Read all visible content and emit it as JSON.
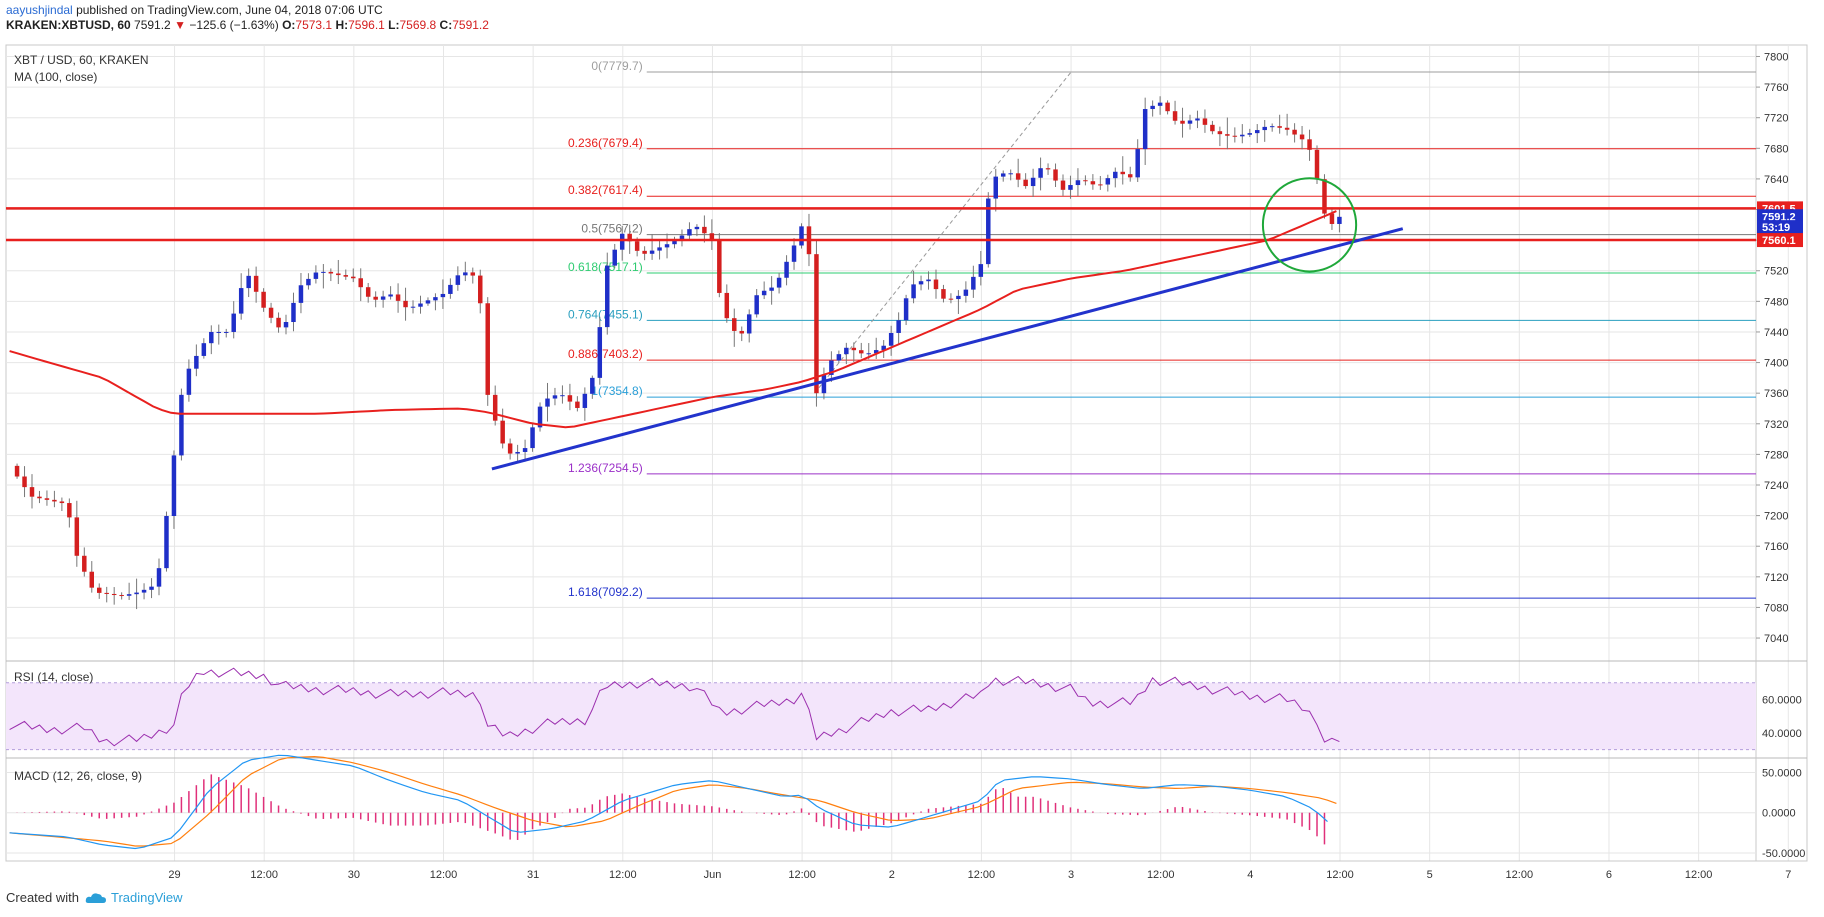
{
  "header": {
    "author": "aayushjindal",
    "published": "published on TradingView.com, June 04, 2018 07:06 UTC",
    "symbol": "KRAKEN:XBTUSD, 60",
    "price": "7591.2",
    "change_arrow": "▼",
    "change": "−125.6 (−1.63%)",
    "o_label": "O:",
    "o": "7573.1",
    "h_label": "H:",
    "h": "7596.1",
    "l_label": "L:",
    "l": "7569.8",
    "c_label": "C:",
    "c": "7591.2"
  },
  "legend": {
    "title": "XBT / USD, 60, KRAKEN",
    "ma": "MA (100, close)",
    "rsi": "RSI (14, close)",
    "macd": "MACD (12, 26, close, 9)"
  },
  "footer": {
    "created_with": "Created with",
    "brand": "TradingView"
  },
  "colors": {
    "up": "#1f2fc8",
    "down": "#d41f1f",
    "ma": "#e8201e",
    "trendline": "#2233cc",
    "rsi": "#9b2fae",
    "macd": "#2196f3",
    "signal": "#ff7f0e",
    "hist": "#e0307a",
    "circle": "#1fa83a",
    "grid": "#e6e6e6"
  },
  "chart_data": [
    {
      "type": "candlestick",
      "title": "XBT / USD, 60, KRAKEN",
      "x_axis": {
        "tick_labels": [
          "29",
          "12:00",
          "30",
          "12:00",
          "31",
          "12:00",
          "Jun",
          "12:00",
          "2",
          "12:00",
          "3",
          "12:00",
          "4",
          "12:00",
          "5",
          "12:00",
          "6",
          "12:00",
          "7"
        ],
        "tick_days": [
          0,
          0.5,
          1,
          1.5,
          2,
          2.5,
          3,
          3.5,
          4,
          4.5,
          5,
          5.5,
          6,
          6.5,
          7,
          7.5,
          8,
          8.5,
          9
        ],
        "range_days": [
          -0.94,
          8.82
        ]
      },
      "y_axis": {
        "ylim": [
          7010,
          7815
        ],
        "ticks": [
          7040,
          7080,
          7120,
          7160,
          7200,
          7240,
          7280,
          7320,
          7360,
          7400,
          7440,
          7480,
          7520,
          7560,
          7600,
          7640,
          7680,
          7720,
          7760,
          7800
        ],
        "price_tags": [
          {
            "label": "7601.5",
            "value": 7601.5,
            "color": "#e8201e"
          },
          {
            "label": "7591.2",
            "value": 7591.2,
            "color": "#1f2fc8"
          },
          {
            "label": "53:19",
            "value": 7577,
            "color": "#1f2fc8"
          },
          {
            "label": "7560.1",
            "value": 7560.1,
            "color": "#e8201e"
          }
        ]
      },
      "candles_keypoints": [
        [
          -0.92,
          7265
        ],
        [
          -0.8,
          7225
        ],
        [
          -0.6,
          7215
        ],
        [
          -0.55,
          7150
        ],
        [
          -0.45,
          7100
        ],
        [
          -0.3,
          7095
        ],
        [
          -0.2,
          7100
        ],
        [
          -0.1,
          7110
        ],
        [
          -0.05,
          7190
        ],
        [
          0.05,
          7380
        ],
        [
          0.2,
          7440
        ],
        [
          0.3,
          7440
        ],
        [
          0.4,
          7520
        ],
        [
          0.5,
          7470
        ],
        [
          0.6,
          7440
        ],
        [
          0.7,
          7500
        ],
        [
          0.8,
          7520
        ],
        [
          1.0,
          7510
        ],
        [
          1.1,
          7480
        ],
        [
          1.2,
          7490
        ],
        [
          1.3,
          7470
        ],
        [
          1.4,
          7480
        ],
        [
          1.5,
          7490
        ],
        [
          1.6,
          7520
        ],
        [
          1.7,
          7510
        ],
        [
          1.72,
          7380
        ],
        [
          1.78,
          7330
        ],
        [
          1.85,
          7280
        ],
        [
          1.95,
          7285
        ],
        [
          2.05,
          7350
        ],
        [
          2.15,
          7360
        ],
        [
          2.25,
          7340
        ],
        [
          2.35,
          7390
        ],
        [
          2.4,
          7520
        ],
        [
          2.5,
          7570
        ],
        [
          2.6,
          7540
        ],
        [
          2.7,
          7550
        ],
        [
          2.8,
          7560
        ],
        [
          2.9,
          7580
        ],
        [
          3.0,
          7560
        ],
        [
          3.05,
          7470
        ],
        [
          3.15,
          7430
        ],
        [
          3.25,
          7490
        ],
        [
          3.35,
          7500
        ],
        [
          3.45,
          7550
        ],
        [
          3.5,
          7580
        ],
        [
          3.55,
          7530
        ],
        [
          3.58,
          7360
        ],
        [
          3.65,
          7400
        ],
        [
          3.75,
          7420
        ],
        [
          3.85,
          7410
        ],
        [
          3.95,
          7420
        ],
        [
          4.05,
          7460
        ],
        [
          4.1,
          7500
        ],
        [
          4.2,
          7510
        ],
        [
          4.3,
          7480
        ],
        [
          4.4,
          7490
        ],
        [
          4.5,
          7530
        ],
        [
          4.55,
          7640
        ],
        [
          4.65,
          7650
        ],
        [
          4.75,
          7630
        ],
        [
          4.85,
          7660
        ],
        [
          4.95,
          7625
        ],
        [
          5.05,
          7640
        ],
        [
          5.15,
          7630
        ],
        [
          5.25,
          7650
        ],
        [
          5.35,
          7640
        ],
        [
          5.4,
          7730
        ],
        [
          5.5,
          7740
        ],
        [
          5.6,
          7710
        ],
        [
          5.7,
          7720
        ],
        [
          5.8,
          7700
        ],
        [
          5.9,
          7695
        ],
        [
          6.0,
          7700
        ],
        [
          6.1,
          7710
        ],
        [
          6.2,
          7705
        ],
        [
          6.3,
          7690
        ],
        [
          6.35,
          7670
        ],
        [
          6.4,
          7600
        ],
        [
          6.45,
          7580
        ],
        [
          6.5,
          7591.2
        ]
      ],
      "ma100_keypoints": [
        [
          -0.92,
          7415
        ],
        [
          -0.7,
          7400
        ],
        [
          -0.4,
          7380
        ],
        [
          -0.1,
          7340
        ],
        [
          0.0,
          7333
        ],
        [
          0.4,
          7333
        ],
        [
          0.8,
          7333
        ],
        [
          1.2,
          7338
        ],
        [
          1.6,
          7340
        ],
        [
          1.75,
          7335
        ],
        [
          2.0,
          7320
        ],
        [
          2.2,
          7315
        ],
        [
          2.5,
          7330
        ],
        [
          2.8,
          7345
        ],
        [
          3.0,
          7355
        ],
        [
          3.3,
          7365
        ],
        [
          3.5,
          7375
        ],
        [
          3.7,
          7390
        ],
        [
          4.0,
          7420
        ],
        [
          4.3,
          7450
        ],
        [
          4.5,
          7470
        ],
        [
          4.7,
          7495
        ],
        [
          5.0,
          7510
        ],
        [
          5.3,
          7520
        ],
        [
          5.6,
          7535
        ],
        [
          5.9,
          7550
        ],
        [
          6.1,
          7560
        ],
        [
          6.3,
          7580
        ],
        [
          6.5,
          7600
        ]
      ],
      "horizontal_levels": [
        {
          "name": "resistance-1",
          "value": 7601.5,
          "color": "#e8201e"
        },
        {
          "name": "resistance-2",
          "value": 7560.1,
          "color": "#e8201e"
        }
      ],
      "trendline": [
        [
          1.77,
          7261
        ],
        [
          6.85,
          7575
        ]
      ],
      "fibonacci": {
        "start_x": 2.6,
        "end_x": 8.82,
        "swing_low": [
          3.57,
          7360
        ],
        "swing_high": [
          5.0,
          7779.7
        ],
        "levels": [
          {
            "label": "0(7779.7)",
            "value": 7779.7,
            "color": "#9e9e9e"
          },
          {
            "label": "0.236(7679.4)",
            "value": 7679.4,
            "color": "#e8201e"
          },
          {
            "label": "0.382(7617.4)",
            "value": 7617.4,
            "color": "#e8201e"
          },
          {
            "label": "0.5(7567.2)",
            "value": 7567.2,
            "color": "#777777"
          },
          {
            "label": "0.618(7517.1)",
            "value": 7517.1,
            "color": "#2ecc71"
          },
          {
            "label": "0.764(7455.1)",
            "value": 7455.1,
            "color": "#2a9fbf"
          },
          {
            "label": "0.886(7403.2)",
            "value": 7403.2,
            "color": "#e8201e"
          },
          {
            "label": "1(7354.8)",
            "value": 7354.8,
            "color": "#2a9fd8"
          },
          {
            "label": "1.236(7254.5)",
            "value": 7254.5,
            "color": "#9b30c8"
          },
          {
            "label": "1.618(7092.2)",
            "value": 7092.2,
            "color": "#2233cc"
          }
        ]
      },
      "annotation_circle": {
        "center": [
          6.33,
          7580
        ],
        "radius_days": 0.26
      }
    },
    {
      "type": "line",
      "title": "RSI (14, close)",
      "ylim": [
        25,
        83
      ],
      "ticks": [
        40,
        60
      ],
      "tick_labels": [
        "40.0000",
        "60.0000"
      ],
      "band": [
        30,
        70
      ],
      "keypoints": [
        [
          -0.92,
          45
        ],
        [
          -0.7,
          42
        ],
        [
          -0.5,
          43
        ],
        [
          -0.4,
          35
        ],
        [
          -0.2,
          36
        ],
        [
          -0.1,
          40
        ],
        [
          0.0,
          45
        ],
        [
          0.05,
          65
        ],
        [
          0.15,
          77
        ],
        [
          0.3,
          76
        ],
        [
          0.5,
          74
        ],
        [
          0.6,
          68
        ],
        [
          0.8,
          66
        ],
        [
          1.0,
          65
        ],
        [
          1.2,
          63
        ],
        [
          1.5,
          64
        ],
        [
          1.7,
          63
        ],
        [
          1.73,
          45
        ],
        [
          1.85,
          38
        ],
        [
          2.1,
          46
        ],
        [
          2.3,
          48
        ],
        [
          2.4,
          68
        ],
        [
          2.6,
          70
        ],
        [
          2.9,
          68
        ],
        [
          3.05,
          52
        ],
        [
          3.2,
          55
        ],
        [
          3.45,
          60
        ],
        [
          3.5,
          64
        ],
        [
          3.58,
          37
        ],
        [
          3.8,
          45
        ],
        [
          4.0,
          53
        ],
        [
          4.2,
          54
        ],
        [
          4.5,
          63
        ],
        [
          4.55,
          72
        ],
        [
          4.8,
          70
        ],
        [
          5.0,
          66
        ],
        [
          5.1,
          58
        ],
        [
          5.35,
          58
        ],
        [
          5.45,
          72
        ],
        [
          5.6,
          70
        ],
        [
          5.8,
          66
        ],
        [
          6.0,
          62
        ],
        [
          6.2,
          60
        ],
        [
          6.3,
          55
        ],
        [
          6.38,
          47
        ],
        [
          6.42,
          32
        ],
        [
          6.5,
          36
        ]
      ]
    },
    {
      "type": "line",
      "title": "MACD (12, 26, close, 9)",
      "ylim": [
        -60,
        68
      ],
      "ticks": [
        -50,
        0,
        50
      ],
      "tick_labels": [
        "-50.0000",
        "0.0000",
        "50.0000"
      ],
      "series": [
        {
          "name": "",
          "keypoints": [
            [
              -0.92,
              -25
            ],
            [
              -0.6,
              -30
            ],
            [
              -0.4,
              -40
            ],
            [
              -0.2,
              -45
            ],
            [
              0.0,
              -30
            ],
            [
              0.2,
              30
            ],
            [
              0.4,
              65
            ],
            [
              0.6,
              72
            ],
            [
              0.8,
              65
            ],
            [
              1.0,
              58
            ],
            [
              1.2,
              40
            ],
            [
              1.4,
              25
            ],
            [
              1.6,
              15
            ],
            [
              1.75,
              -5
            ],
            [
              1.9,
              -25
            ],
            [
              2.1,
              -20
            ],
            [
              2.3,
              -10
            ],
            [
              2.5,
              15
            ],
            [
              2.8,
              35
            ],
            [
              3.0,
              40
            ],
            [
              3.2,
              30
            ],
            [
              3.4,
              20
            ],
            [
              3.5,
              22
            ],
            [
              3.6,
              5
            ],
            [
              3.8,
              -15
            ],
            [
              4.0,
              -18
            ],
            [
              4.2,
              -5
            ],
            [
              4.5,
              15
            ],
            [
              4.6,
              40
            ],
            [
              4.8,
              45
            ],
            [
              5.0,
              42
            ],
            [
              5.2,
              35
            ],
            [
              5.4,
              30
            ],
            [
              5.6,
              35
            ],
            [
              5.8,
              33
            ],
            [
              6.0,
              28
            ],
            [
              6.2,
              20
            ],
            [
              6.35,
              5
            ],
            [
              6.45,
              -15
            ]
          ]
        },
        {
          "name": "",
          "keypoints": [
            [
              -0.92,
              -25
            ],
            [
              -0.4,
              -35
            ],
            [
              -0.2,
              -42
            ],
            [
              0.0,
              -38
            ],
            [
              0.2,
              0
            ],
            [
              0.4,
              45
            ],
            [
              0.6,
              68
            ],
            [
              0.8,
              70
            ],
            [
              1.0,
              62
            ],
            [
              1.2,
              50
            ],
            [
              1.4,
              35
            ],
            [
              1.6,
              22
            ],
            [
              1.8,
              5
            ],
            [
              2.0,
              -10
            ],
            [
              2.2,
              -18
            ],
            [
              2.4,
              -10
            ],
            [
              2.6,
              10
            ],
            [
              2.8,
              28
            ],
            [
              3.0,
              35
            ],
            [
              3.2,
              30
            ],
            [
              3.4,
              22
            ],
            [
              3.6,
              15
            ],
            [
              3.8,
              0
            ],
            [
              4.0,
              -10
            ],
            [
              4.2,
              -8
            ],
            [
              4.5,
              8
            ],
            [
              4.7,
              30
            ],
            [
              5.0,
              38
            ],
            [
              5.2,
              36
            ],
            [
              5.4,
              32
            ],
            [
              5.6,
              30
            ],
            [
              5.8,
              33
            ],
            [
              6.0,
              30
            ],
            [
              6.2,
              25
            ],
            [
              6.4,
              18
            ],
            [
              6.5,
              10
            ]
          ]
        }
      ]
    }
  ]
}
